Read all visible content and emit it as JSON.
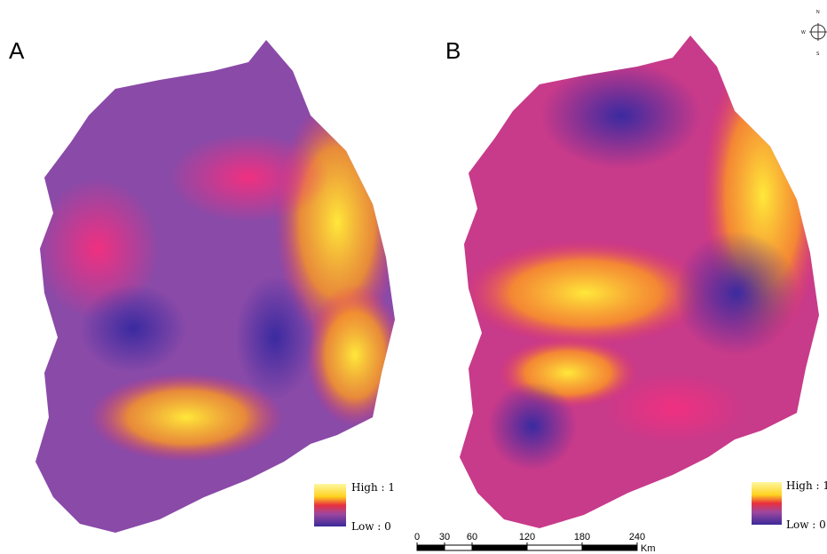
{
  "panels": [
    {
      "label": "A",
      "legend": {
        "high": "High : 1",
        "low": "Low : 0"
      }
    },
    {
      "label": "B",
      "legend": {
        "high": "High : 1",
        "low": "Low : 0"
      }
    }
  ],
  "scale_bar": {
    "ticks": [
      0,
      30,
      60,
      120,
      180,
      240
    ],
    "unit": "Km"
  },
  "compass": {
    "n": "N",
    "w": "W",
    "s": "S"
  }
}
